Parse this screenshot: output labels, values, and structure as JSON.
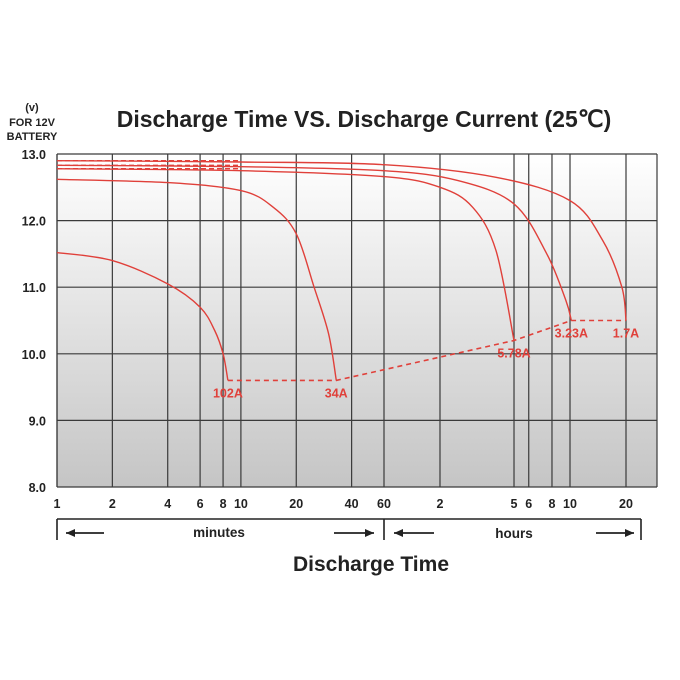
{
  "chart_data": {
    "type": "line",
    "title": "Discharge Time VS. Discharge Current (25℃)",
    "ylabel": [
      "(v)",
      "FOR 12V",
      "BATTERY"
    ],
    "xlabel": "Discharge Time",
    "ylim": [
      8.0,
      13.0
    ],
    "y_ticks": [
      "8.0",
      "9.0",
      "10.0",
      "11.0",
      "12.0",
      "13.0"
    ],
    "x_scale": "log",
    "x_unit": "minutes",
    "x_ticks": [
      {
        "label": "1",
        "minutes": 1
      },
      {
        "label": "2",
        "minutes": 2
      },
      {
        "label": "4",
        "minutes": 4
      },
      {
        "label": "6",
        "minutes": 6
      },
      {
        "label": "8",
        "minutes": 8
      },
      {
        "label": "10",
        "minutes": 10
      },
      {
        "label": "20",
        "minutes": 20
      },
      {
        "label": "40",
        "minutes": 40
      },
      {
        "label": "60",
        "minutes": 60
      },
      {
        "label": "2",
        "minutes": 120
      },
      {
        "label": "5",
        "minutes": 300
      },
      {
        "label": "6",
        "minutes": 360
      },
      {
        "label": "8",
        "minutes": 480
      },
      {
        "label": "10",
        "minutes": 600
      },
      {
        "label": "20",
        "minutes": 1200
      }
    ],
    "grid": true,
    "periods": [
      {
        "label": "minutes",
        "from_minutes": 1,
        "to_minutes": 60
      },
      {
        "label": "hours",
        "from_minutes": 60,
        "to_minutes": 1440
      }
    ],
    "series": [
      {
        "name": "102A",
        "end_voltage": 9.6,
        "points": [
          [
            1,
            11.52
          ],
          [
            2,
            11.4
          ],
          [
            4,
            11.05
          ],
          [
            6,
            10.7
          ],
          [
            7.2,
            10.35
          ],
          [
            8,
            10.0
          ],
          [
            8.5,
            9.6
          ]
        ]
      },
      {
        "name": "34A",
        "end_voltage": 9.6,
        "points": [
          [
            1,
            12.62
          ],
          [
            4,
            12.57
          ],
          [
            10,
            12.45
          ],
          [
            15,
            12.2
          ],
          [
            20,
            11.8
          ],
          [
            25,
            11.0
          ],
          [
            30,
            10.3
          ],
          [
            33,
            9.6
          ]
        ]
      },
      {
        "name": "5.78A",
        "end_voltage": 10.2,
        "points": [
          [
            1,
            12.78
          ],
          [
            10,
            12.75
          ],
          [
            60,
            12.66
          ],
          [
            120,
            12.5
          ],
          [
            180,
            12.2
          ],
          [
            240,
            11.55
          ],
          [
            300,
            10.2
          ]
        ]
      },
      {
        "name": "3.23A",
        "end_voltage": 10.5,
        "points": [
          [
            1,
            12.83
          ],
          [
            10,
            12.81
          ],
          [
            60,
            12.75
          ],
          [
            150,
            12.6
          ],
          [
            300,
            12.25
          ],
          [
            450,
            11.5
          ],
          [
            570,
            10.8
          ],
          [
            610,
            10.5
          ]
        ]
      },
      {
        "name": "1.7A",
        "end_voltage": 10.5,
        "points": [
          [
            1,
            12.9
          ],
          [
            10,
            12.88
          ],
          [
            60,
            12.84
          ],
          [
            240,
            12.65
          ],
          [
            600,
            12.3
          ],
          [
            900,
            11.7
          ],
          [
            1140,
            11.0
          ],
          [
            1200,
            10.5
          ]
        ]
      }
    ],
    "cutoff_line": {
      "style": "dashed",
      "points": [
        [
          8.5,
          9.6
        ],
        [
          33,
          9.6
        ],
        [
          300,
          10.2
        ],
        [
          610,
          10.5
        ],
        [
          1200,
          10.5
        ]
      ]
    },
    "colors": {
      "curve": "#e0403a",
      "grid": "#3a3a3a",
      "text": "#222222",
      "bg_top": "#ffffff",
      "bg_bottom": "#c5c5c5"
    }
  }
}
